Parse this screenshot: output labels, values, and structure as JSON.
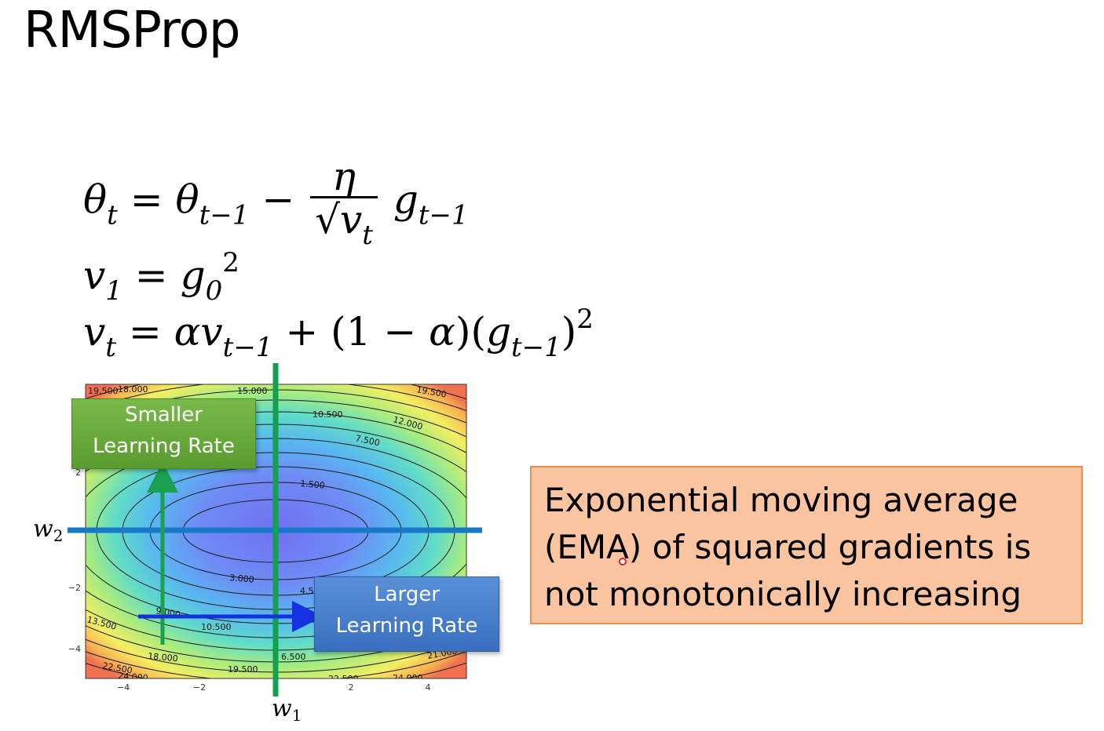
{
  "slide": {
    "title": "RMSProp"
  },
  "equations": {
    "eq1": {
      "lhs_var": "θ",
      "lhs_sub": "t",
      "equals": "=",
      "rhs_var": "θ",
      "rhs_sub": "t−1",
      "minus": "−",
      "numerator": "η",
      "sqrt": "√",
      "den_var": "v",
      "den_sub": "t",
      "grad_var": "g",
      "grad_sub": "t−1"
    },
    "eq2": {
      "lhs_var": "v",
      "lhs_sub": "1",
      "equals": "=",
      "rhs_var": "g",
      "rhs_sub": "0",
      "rhs_sup": "2"
    },
    "eq3": {
      "lhs_var": "v",
      "lhs_sub": "t",
      "equals": "=",
      "alpha": "α",
      "v_var": "v",
      "v_sub": "t−1",
      "plus": "+",
      "paren_open": "(1 − ",
      "alpha2": "α",
      "paren_close": ")(",
      "g_var": "g",
      "g_sub": "t−1",
      "close": ")",
      "sup": "2"
    }
  },
  "contour_plot": {
    "center": [
      0,
      0
    ],
    "contour_labels": [
      "19.500",
      "18.000",
      "15.000",
      "10.500",
      "12.000",
      "7.500",
      "19.500",
      "1.500",
      "3.000",
      "4.5",
      "9.000",
      "13.500",
      "10.500",
      "18.000",
      "22.500",
      "24.000",
      "19.500",
      "6.500",
      "22.500",
      "24.000",
      "21.000"
    ],
    "x_ticks": [
      "−4",
      "−2",
      "2",
      "4"
    ],
    "y_ticks": [
      "2",
      "−2",
      "−4"
    ],
    "axis_w1": "w",
    "axis_w1_sub": "1",
    "axis_w2": "w",
    "axis_w2_sub": "2",
    "colors": {
      "green_line": "#14a050",
      "blue_line": "#1a78c8",
      "arrow_green": "#1aa050",
      "arrow_blue": "#1530e0"
    }
  },
  "callouts": {
    "smaller": [
      "Smaller",
      "Learning Rate"
    ],
    "larger": [
      "Larger",
      "Learning Rate"
    ]
  },
  "ema_box": {
    "text": "Exponential moving average (EMA) of squared gradients is not monotonically increasing"
  }
}
